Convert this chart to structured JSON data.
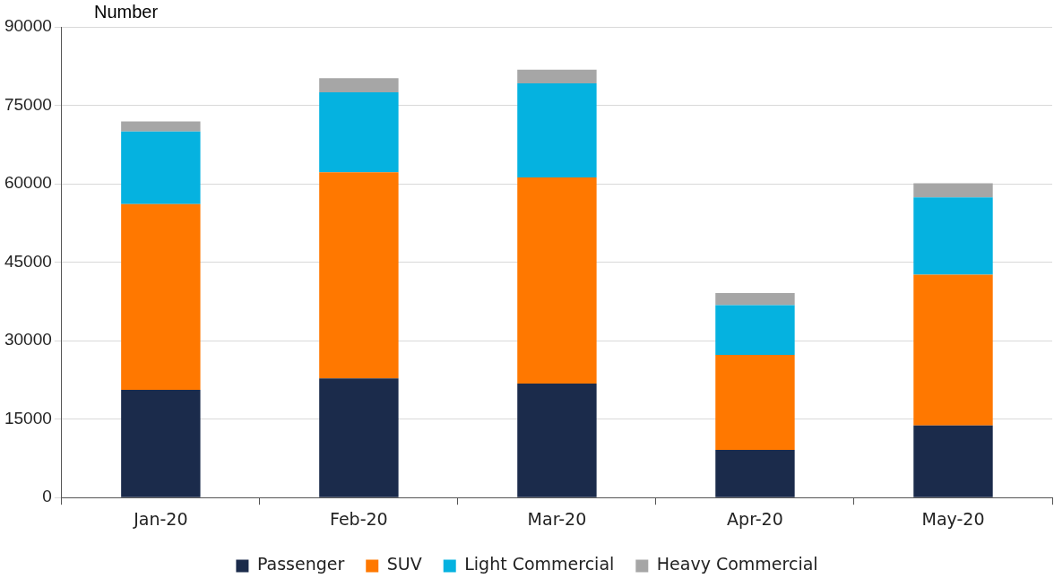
{
  "chart_data": {
    "type": "bar",
    "stacked": true,
    "ylabel": "Number",
    "categories": [
      "Jan-20",
      "Feb-20",
      "Mar-20",
      "Apr-20",
      "May-20"
    ],
    "series": [
      {
        "name": "Passenger",
        "color": "#1b2b4b",
        "values": [
          20600,
          22800,
          21800,
          9100,
          13800
        ]
      },
      {
        "name": "SUV",
        "color": "#ff7800",
        "values": [
          35500,
          39400,
          39400,
          18200,
          28800
        ]
      },
      {
        "name": "Light Commercial",
        "color": "#05b2e0",
        "values": [
          13900,
          15300,
          18000,
          9500,
          14800
        ]
      },
      {
        "name": "Heavy Commercial",
        "color": "#a6a6a6",
        "values": [
          1900,
          2700,
          2600,
          2300,
          2700
        ]
      }
    ],
    "ylim": [
      0,
      90000
    ],
    "yticks": [
      0,
      15000,
      30000,
      45000,
      60000,
      75000,
      90000
    ],
    "grid": "y",
    "legend": "bottom"
  }
}
